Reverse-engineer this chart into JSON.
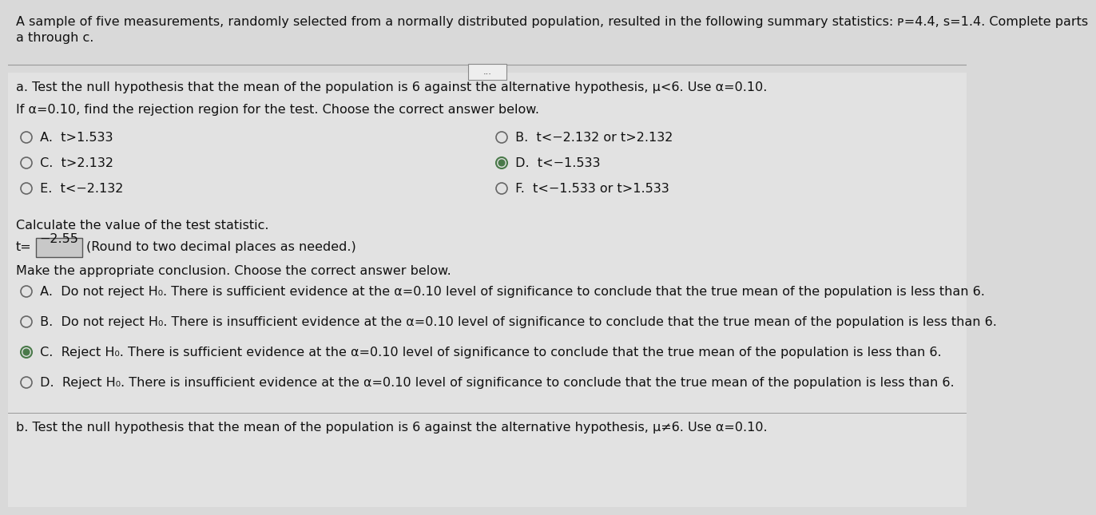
{
  "bg_color": "#d9d9d9",
  "text_color": "#111111",
  "header_line1": "A sample of five measurements, randomly selected from a normally distributed population, resulted in the following summary statistics: ᴩ=4.4, s=1.4. Complete parts",
  "header_line2": "a through c.",
  "separator_color": "#999999",
  "dots_text": "...",
  "part_a": "a. Test the null hypothesis that the mean of the population is 6 against the alternative hypothesis, μ<6. Use α=0.10.",
  "rejection_label": "If α=0.10, find the rejection region for the test. Choose the correct answer below.",
  "options_rejection": [
    {
      "id": "A",
      "text": "t>1.533",
      "selected": false,
      "col": 0,
      "row": 0
    },
    {
      "id": "B",
      "text": "t<−2.132 or t>2.132",
      "selected": false,
      "col": 1,
      "row": 0
    },
    {
      "id": "C",
      "text": "t>2.132",
      "selected": false,
      "col": 0,
      "row": 1
    },
    {
      "id": "D",
      "text": "t<−1.533",
      "selected": true,
      "col": 1,
      "row": 1
    },
    {
      "id": "E",
      "text": "t<−2.132",
      "selected": false,
      "col": 0,
      "row": 2
    },
    {
      "id": "F",
      "text": "t<−1.533 or t>1.533",
      "selected": false,
      "col": 1,
      "row": 2
    }
  ],
  "calc_label": "Calculate the value of the test statistic.",
  "t_prefix": "t=",
  "t_box_value": "−2.55",
  "t_suffix": "(Round to two decimal places as needed.)",
  "conclusion_label": "Make the appropriate conclusion. Choose the correct answer below.",
  "options_conclusion": [
    {
      "id": "A",
      "text": "Do not reject H₀. There is sufficient evidence at the α=0.10 level of significance to conclude that the true mean of the population is less than 6.",
      "selected": false
    },
    {
      "id": "B",
      "text": "Do not reject H₀. There is insufficient evidence at the α=0.10 level of significance to conclude that the true mean of the population is less than 6.",
      "selected": false
    },
    {
      "id": "C",
      "text": "Reject H₀. There is sufficient evidence at the α=0.10 level of significance to conclude that the true mean of the population is less than 6.",
      "selected": true
    },
    {
      "id": "D",
      "text": "Reject H₀. There is insufficient evidence at the α=0.10 level of significance to conclude that the true mean of the population is less than 6.",
      "selected": false
    }
  ],
  "part_b": "b. Test the null hypothesis that the mean of the population is 6 against the alternative hypothesis, μ≠6. Use α=0.10.",
  "radio_r": 0.009,
  "radio_color_off": "#666666",
  "radio_color_on": "#4a7a4a",
  "font_size_main": 11.5,
  "font_size_small": 10.5
}
